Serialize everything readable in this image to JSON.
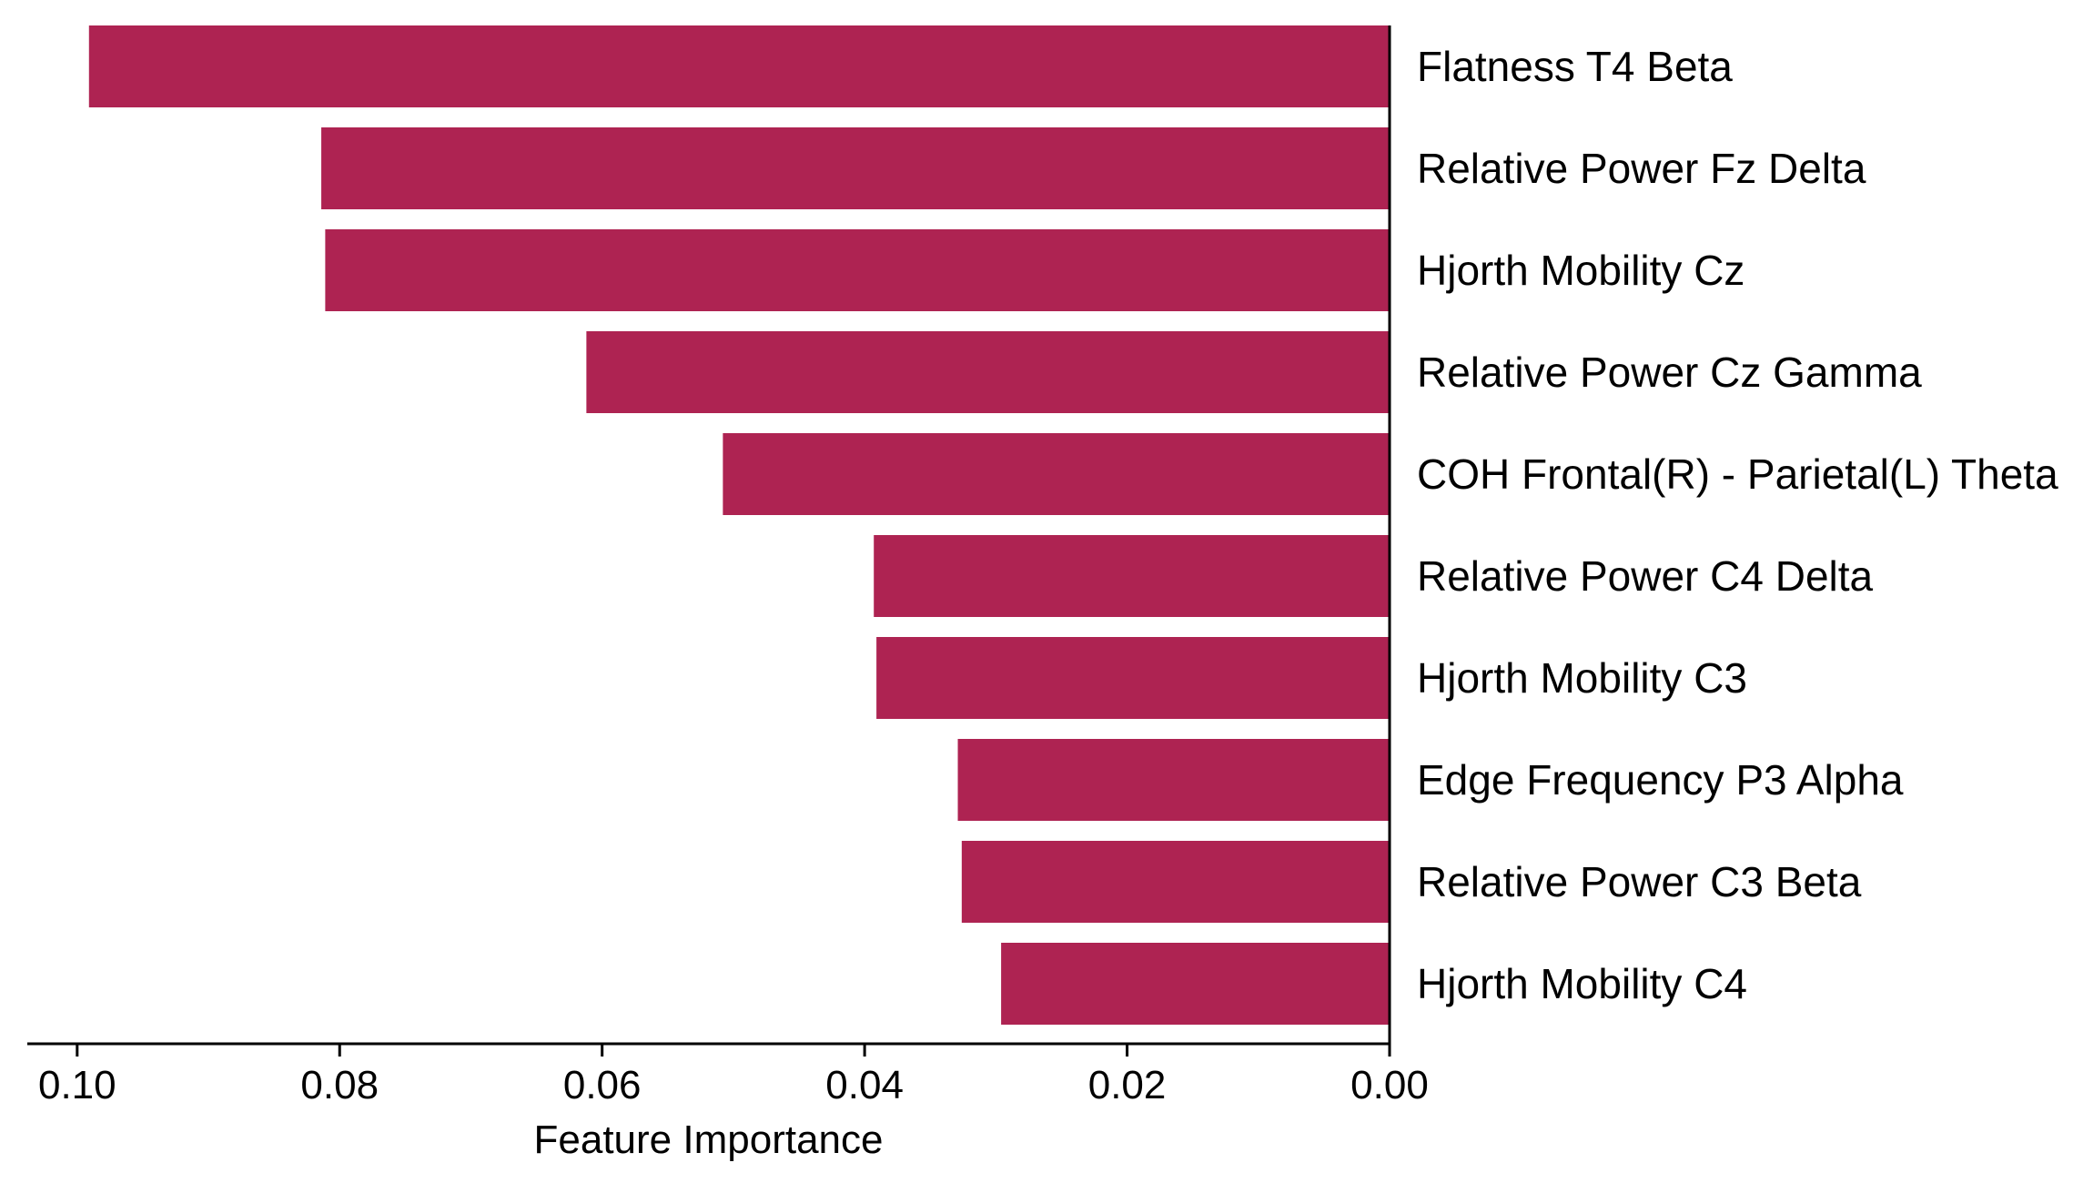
{
  "chart_data": {
    "type": "bar",
    "orientation": "horizontal",
    "x_inverted": true,
    "categories": [
      "Flatness T4 Beta",
      "Relative Power Fz Delta",
      "Hjorth Mobility Cz",
      "Relative Power Cz Gamma",
      "COH Frontal(R) - Parietal(L) Theta",
      "Relative Power C4 Delta",
      "Hjorth Mobility C3",
      "Edge Frequency P3 Alpha",
      "Relative Power C3 Beta",
      "Hjorth Mobility C4"
    ],
    "values": [
      0.0991,
      0.0814,
      0.0811,
      0.0612,
      0.0508,
      0.0393,
      0.0391,
      0.0329,
      0.0326,
      0.0296
    ],
    "xlabel": "Feature Importance",
    "ylabel": "",
    "title": "",
    "xlim": [
      0.1038,
      0.0
    ],
    "xticks": [
      0.1,
      0.08,
      0.06,
      0.04,
      0.02,
      0.0
    ],
    "xtick_labels": [
      "0.10",
      "0.08",
      "0.06",
      "0.04",
      "0.02",
      "0.00"
    ],
    "grid": false,
    "legend": "none",
    "bar_color": "#ae2352",
    "axis_color": "#000000"
  }
}
